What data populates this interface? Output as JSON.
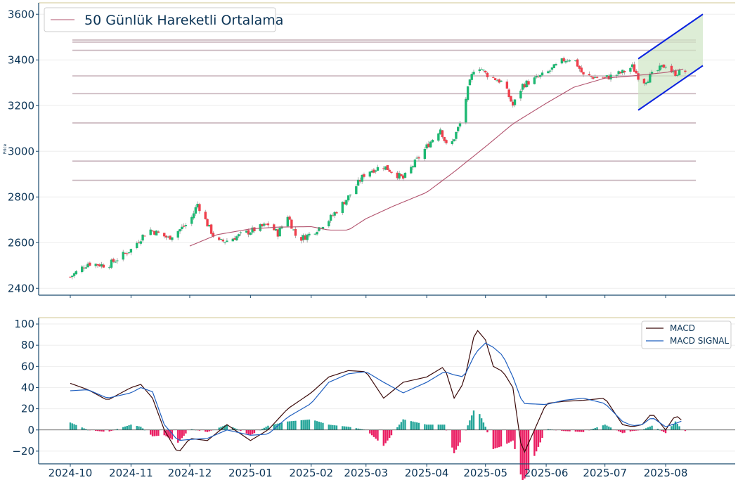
{
  "chart_data": [
    {
      "type": "candlestick",
      "title": "",
      "ylabel": "Price",
      "ylim": [
        2370,
        3650
      ],
      "yticks": [
        "2400",
        "2600",
        "2800",
        "3000",
        "3200",
        "3400",
        "3600"
      ],
      "legend": {
        "position": "top-left",
        "entries": [
          "50 Günlük Hareketli Ortalama"
        ]
      },
      "colors": {
        "up": "#26a69a",
        "up_fill": "#1db872",
        "down": "#ef3f4c",
        "ma": "#b2536e",
        "channel": "#0a22e0",
        "channel_fill": "#cfe6c4",
        "level": "#c8b4bc"
      },
      "horizontal_levels": [
        3487,
        3478,
        3442,
        3330,
        3252,
        3124,
        2957,
        2873
      ],
      "ma_series": {
        "name": "50 Günlük Hareketli Ortalama",
        "x": [
          "2024-12-01",
          "2024-12-15",
          "2025-01-01",
          "2025-01-15",
          "2025-02-01",
          "2025-02-10",
          "2025-02-20",
          "2025-03-01",
          "2025-03-15",
          "2025-04-01",
          "2025-04-15",
          "2025-05-01",
          "2025-05-15",
          "2025-06-01",
          "2025-06-15",
          "2025-07-01",
          "2025-07-15",
          "2025-08-01",
          "2025-08-10"
        ],
        "values": [
          2585,
          2635,
          2660,
          2668,
          2670,
          2655,
          2655,
          2705,
          2760,
          2820,
          2910,
          3020,
          3120,
          3210,
          3280,
          3320,
          3330,
          3345,
          3360
        ]
      },
      "price_path": {
        "x": [
          "2024-10-01",
          "2024-10-10",
          "2024-10-20",
          "2024-11-01",
          "2024-11-10",
          "2024-11-20",
          "2024-12-01",
          "2024-12-05",
          "2024-12-10",
          "2024-12-15",
          "2024-12-20",
          "2025-01-01",
          "2025-01-10",
          "2025-01-15",
          "2025-01-20",
          "2025-01-25",
          "2025-02-01",
          "2025-02-10",
          "2025-02-20",
          "2025-03-01",
          "2025-03-10",
          "2025-03-20",
          "2025-04-01",
          "2025-04-08",
          "2025-04-12",
          "2025-04-18",
          "2025-04-22",
          "2025-04-26",
          "2025-05-01",
          "2025-05-10",
          "2025-05-15",
          "2025-05-20",
          "2025-06-01",
          "2025-06-10",
          "2025-06-15",
          "2025-06-20",
          "2025-07-01",
          "2025-07-10",
          "2025-07-15",
          "2025-07-20",
          "2025-08-01",
          "2025-08-05",
          "2025-08-10"
        ],
        "values": [
          2450,
          2510,
          2500,
          2570,
          2660,
          2620,
          2690,
          2770,
          2680,
          2600,
          2610,
          2650,
          2680,
          2640,
          2720,
          2610,
          2640,
          2700,
          2800,
          2910,
          2935,
          2880,
          3020,
          3100,
          3000,
          3120,
          3270,
          3390,
          3340,
          3300,
          3200,
          3290,
          3340,
          3400,
          3410,
          3330,
          3320,
          3345,
          3370,
          3300,
          3380,
          3340,
          3350
        ]
      },
      "trend_channel": {
        "upper": {
          "x": [
            "2025-07-18",
            "2025-08-20"
          ],
          "values": [
            3405,
            3600
          ]
        },
        "lower": {
          "x": [
            "2025-07-18",
            "2025-08-20"
          ],
          "values": [
            3180,
            3375
          ]
        }
      }
    },
    {
      "type": "line+bar",
      "ylim": [
        -32,
        106
      ],
      "yticks": [
        "−20",
        "0",
        "20",
        "40",
        "60",
        "80",
        "100"
      ],
      "legend": {
        "position": "top-right",
        "entries": [
          "MACD",
          "MACD SIGNAL"
        ]
      },
      "x_ticks": [
        "2024-10",
        "2024-11",
        "2024-12",
        "2025-01",
        "2025-02",
        "2025-03",
        "2025-04",
        "2025-05",
        "2025-06",
        "2025-07",
        "2025-08"
      ],
      "x": [
        "2024-10-01",
        "2024-10-10",
        "2024-10-20",
        "2024-11-01",
        "2024-11-06",
        "2024-11-12",
        "2024-11-18",
        "2024-11-25",
        "2024-12-01",
        "2024-12-10",
        "2024-12-20",
        "2025-01-01",
        "2025-01-10",
        "2025-01-20",
        "2025-02-01",
        "2025-02-10",
        "2025-02-20",
        "2025-03-01",
        "2025-03-10",
        "2025-03-20",
        "2025-04-01",
        "2025-04-10",
        "2025-04-15",
        "2025-04-20",
        "2025-04-26",
        "2025-05-01",
        "2025-05-05",
        "2025-05-10",
        "2025-05-15",
        "2025-05-20",
        "2025-06-01",
        "2025-06-10",
        "2025-06-20",
        "2025-07-01",
        "2025-07-10",
        "2025-07-15",
        "2025-07-20",
        "2025-07-25",
        "2025-08-01",
        "2025-08-06",
        "2025-08-10"
      ],
      "series": [
        {
          "name": "MACD",
          "color": "#3b0a0a",
          "values": [
            44,
            38,
            28,
            40,
            43,
            30,
            0,
            -22,
            -8,
            -10,
            5,
            -10,
            0,
            20,
            35,
            50,
            56,
            55,
            30,
            45,
            50,
            60,
            30,
            45,
            96,
            85,
            60,
            55,
            40,
            -25,
            25,
            27,
            28,
            30,
            5,
            3,
            5,
            16,
            0,
            14,
            8
          ]
        },
        {
          "name": "MACD SIGNAL",
          "color": "#1f5fbf",
          "values": [
            37,
            38,
            30,
            35,
            40,
            36,
            5,
            -10,
            -9,
            -8,
            0,
            -5,
            -4,
            12,
            25,
            45,
            53,
            55,
            45,
            35,
            45,
            55,
            52,
            50,
            73,
            82,
            78,
            70,
            50,
            25,
            24,
            28,
            30,
            25,
            8,
            4,
            5,
            12,
            3,
            6,
            9
          ]
        }
      ],
      "histogram": {
        "values": [
          7,
          0,
          -2,
          5,
          3,
          -6,
          -5,
          -12,
          1,
          -2,
          5,
          -5,
          4,
          8,
          10,
          5,
          3,
          0,
          -15,
          10,
          5,
          5,
          -22,
          -5,
          23,
          3,
          -18,
          -15,
          -10,
          -50,
          1,
          -1,
          -2,
          5,
          -3,
          -1,
          0,
          4,
          -3,
          8,
          -1
        ],
        "colors": {
          "positive": "#26a69a",
          "negative": "#ea1f63"
        }
      }
    }
  ]
}
